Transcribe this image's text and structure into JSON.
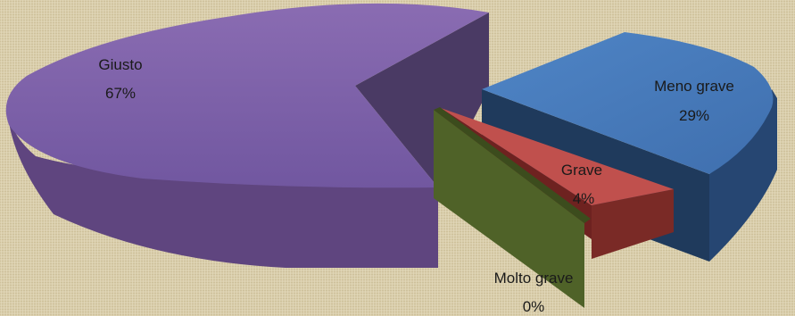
{
  "chart_data": {
    "type": "pie",
    "style": "3d-exploded",
    "categories": [
      "Giusto",
      "Meno grave",
      "Grave",
      "Molto grave"
    ],
    "values": [
      67,
      29,
      4,
      0
    ],
    "labels": [
      "67%",
      "29%",
      "4%",
      "0%"
    ],
    "colors": {
      "Giusto": "#7b5fa0",
      "Meno grave": "#4a7ebb",
      "Grave": "#c0504d",
      "Molto grave": "#4f6228"
    },
    "legend": "none",
    "background": "#d8ccaa"
  }
}
